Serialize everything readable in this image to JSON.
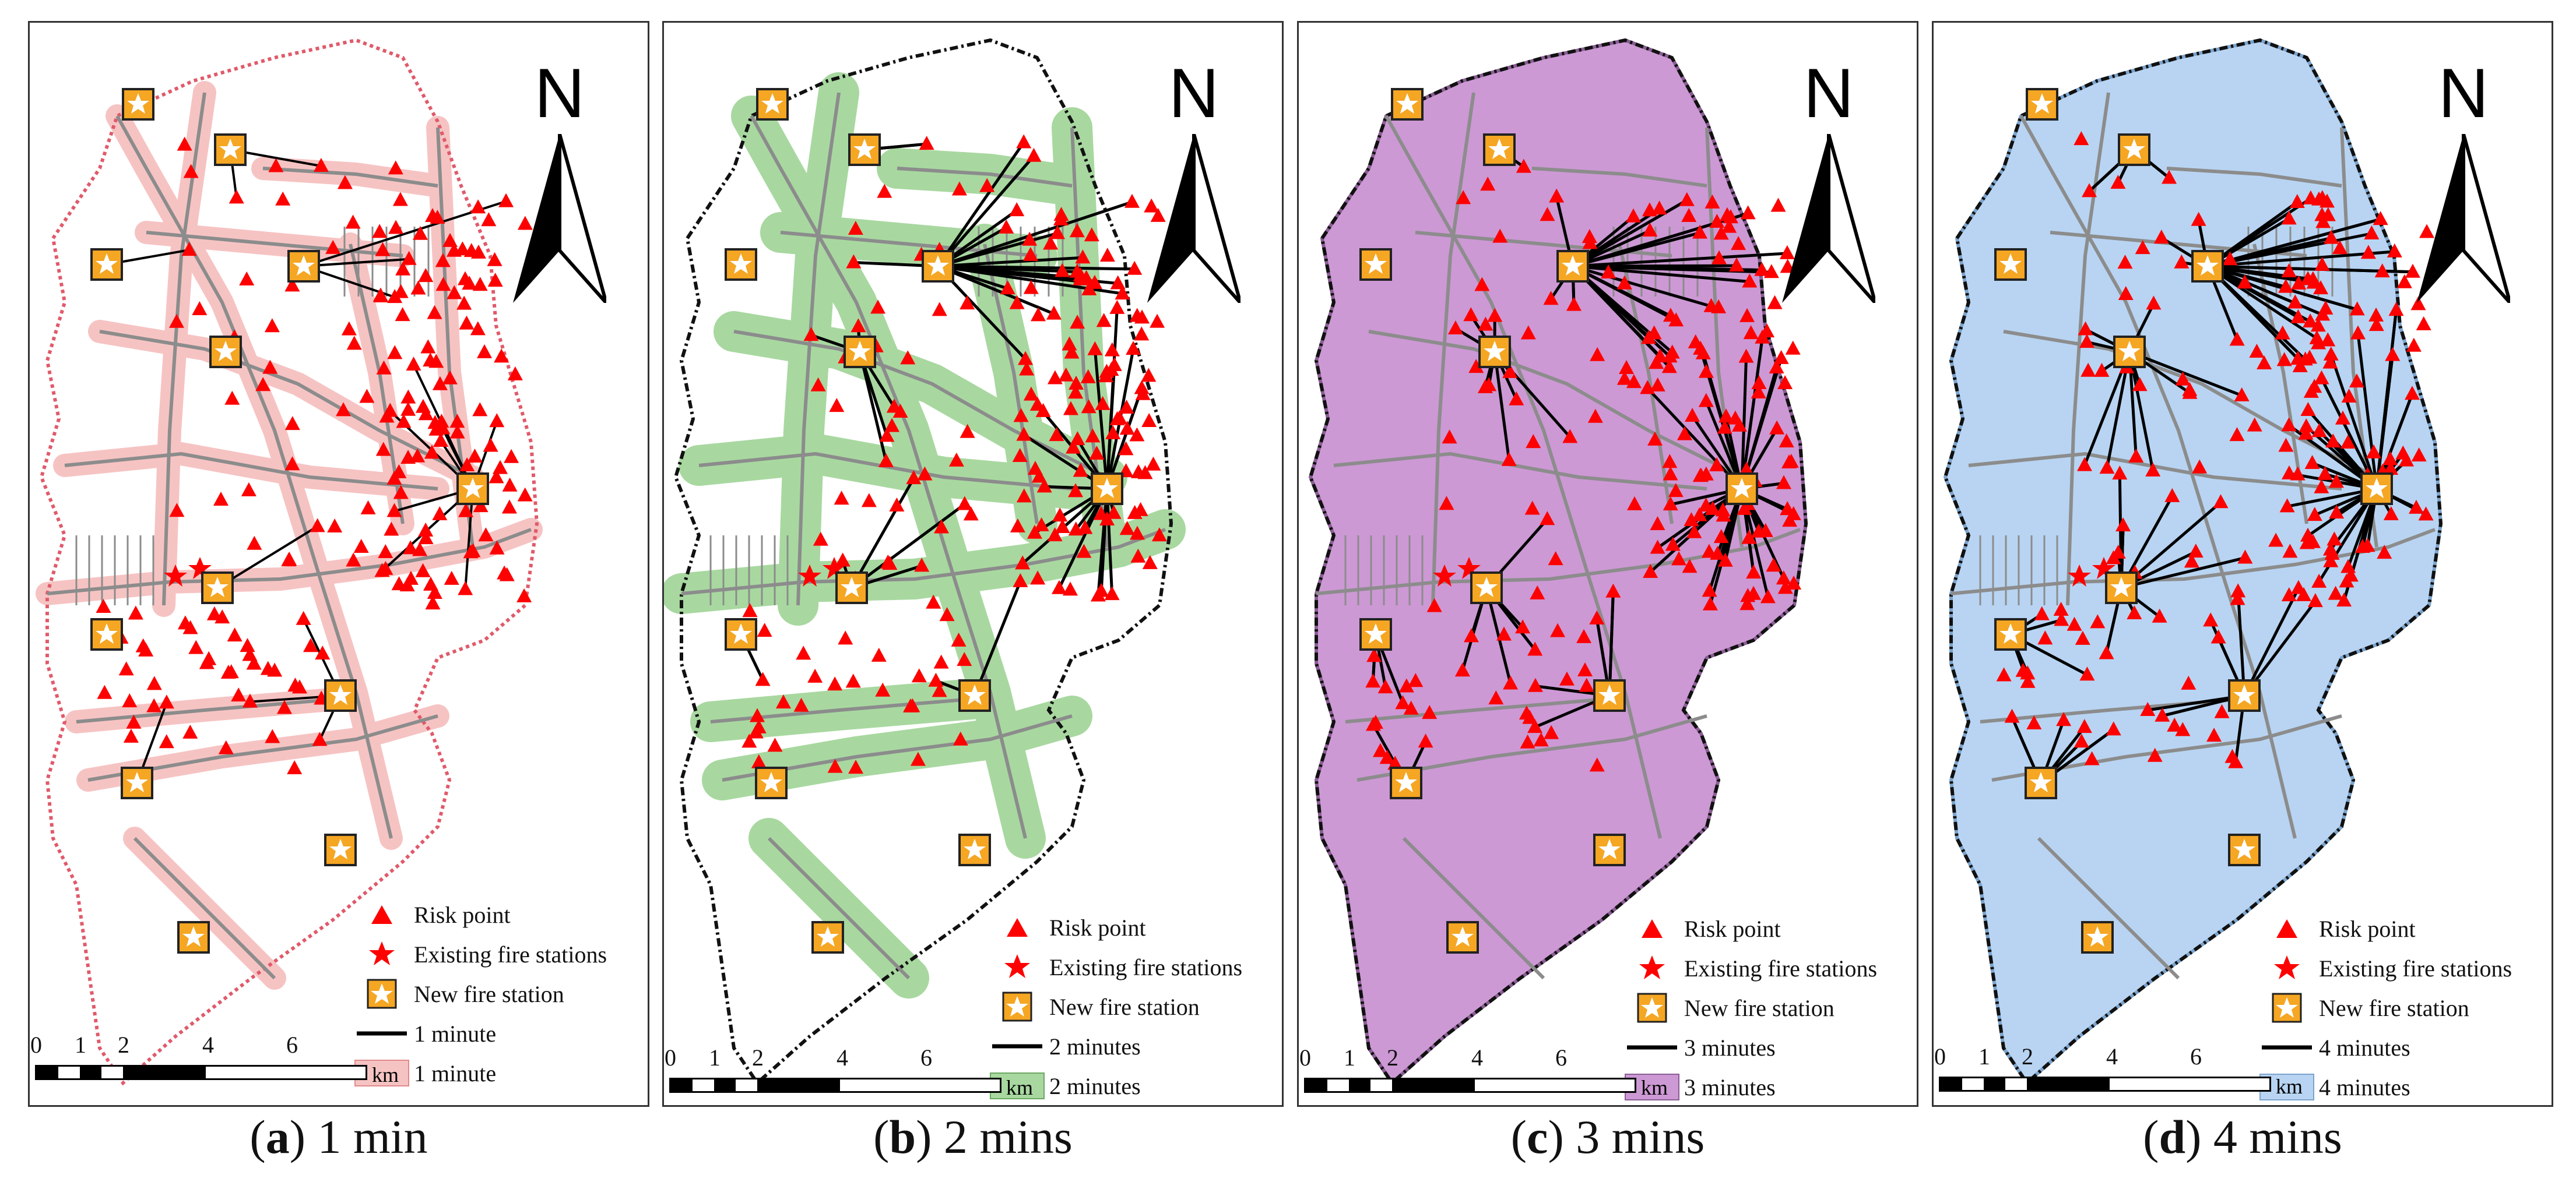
{
  "panels": [
    {
      "letter": "a",
      "caption_rest": ") 1 min",
      "legend_line": "1 minute",
      "legend_area": "1 minute",
      "area_fill": "#f6c3c3",
      "area_stroke": "#e08a8a",
      "edge": "#e05a6a"
    },
    {
      "letter": "b",
      "caption_rest": ") 2 mins",
      "legend_line": "2 minutes",
      "legend_area": "2 minutes",
      "area_fill": "#a8d8a0",
      "area_stroke": "#6aa862",
      "edge": "#111111"
    },
    {
      "letter": "c",
      "caption_rest": ") 3 mins",
      "legend_line": "3 minutes",
      "legend_area": "3 minutes",
      "area_fill": "#cc99d4",
      "area_stroke": "#8a5e94",
      "edge": "#111111"
    },
    {
      "letter": "d",
      "caption_rest": ") 4 mins",
      "legend_line": "4 minutes",
      "legend_area": "4 minutes",
      "area_fill": "#b8d4f2",
      "area_stroke": "#7ba3cc",
      "edge": "#111111"
    }
  ],
  "legend": {
    "risk_point": "Risk point",
    "existing": "Existing fire stations",
    "new_station": "New fire station"
  },
  "north_label": "N",
  "scale": {
    "labels": [
      "0",
      "1",
      "2",
      "4",
      "6"
    ],
    "unit": "km"
  },
  "colors": {
    "risk": "#ff0000",
    "station_fill": "#f5a623",
    "station_border": "#222222",
    "road": "#8c8c8c"
  }
}
